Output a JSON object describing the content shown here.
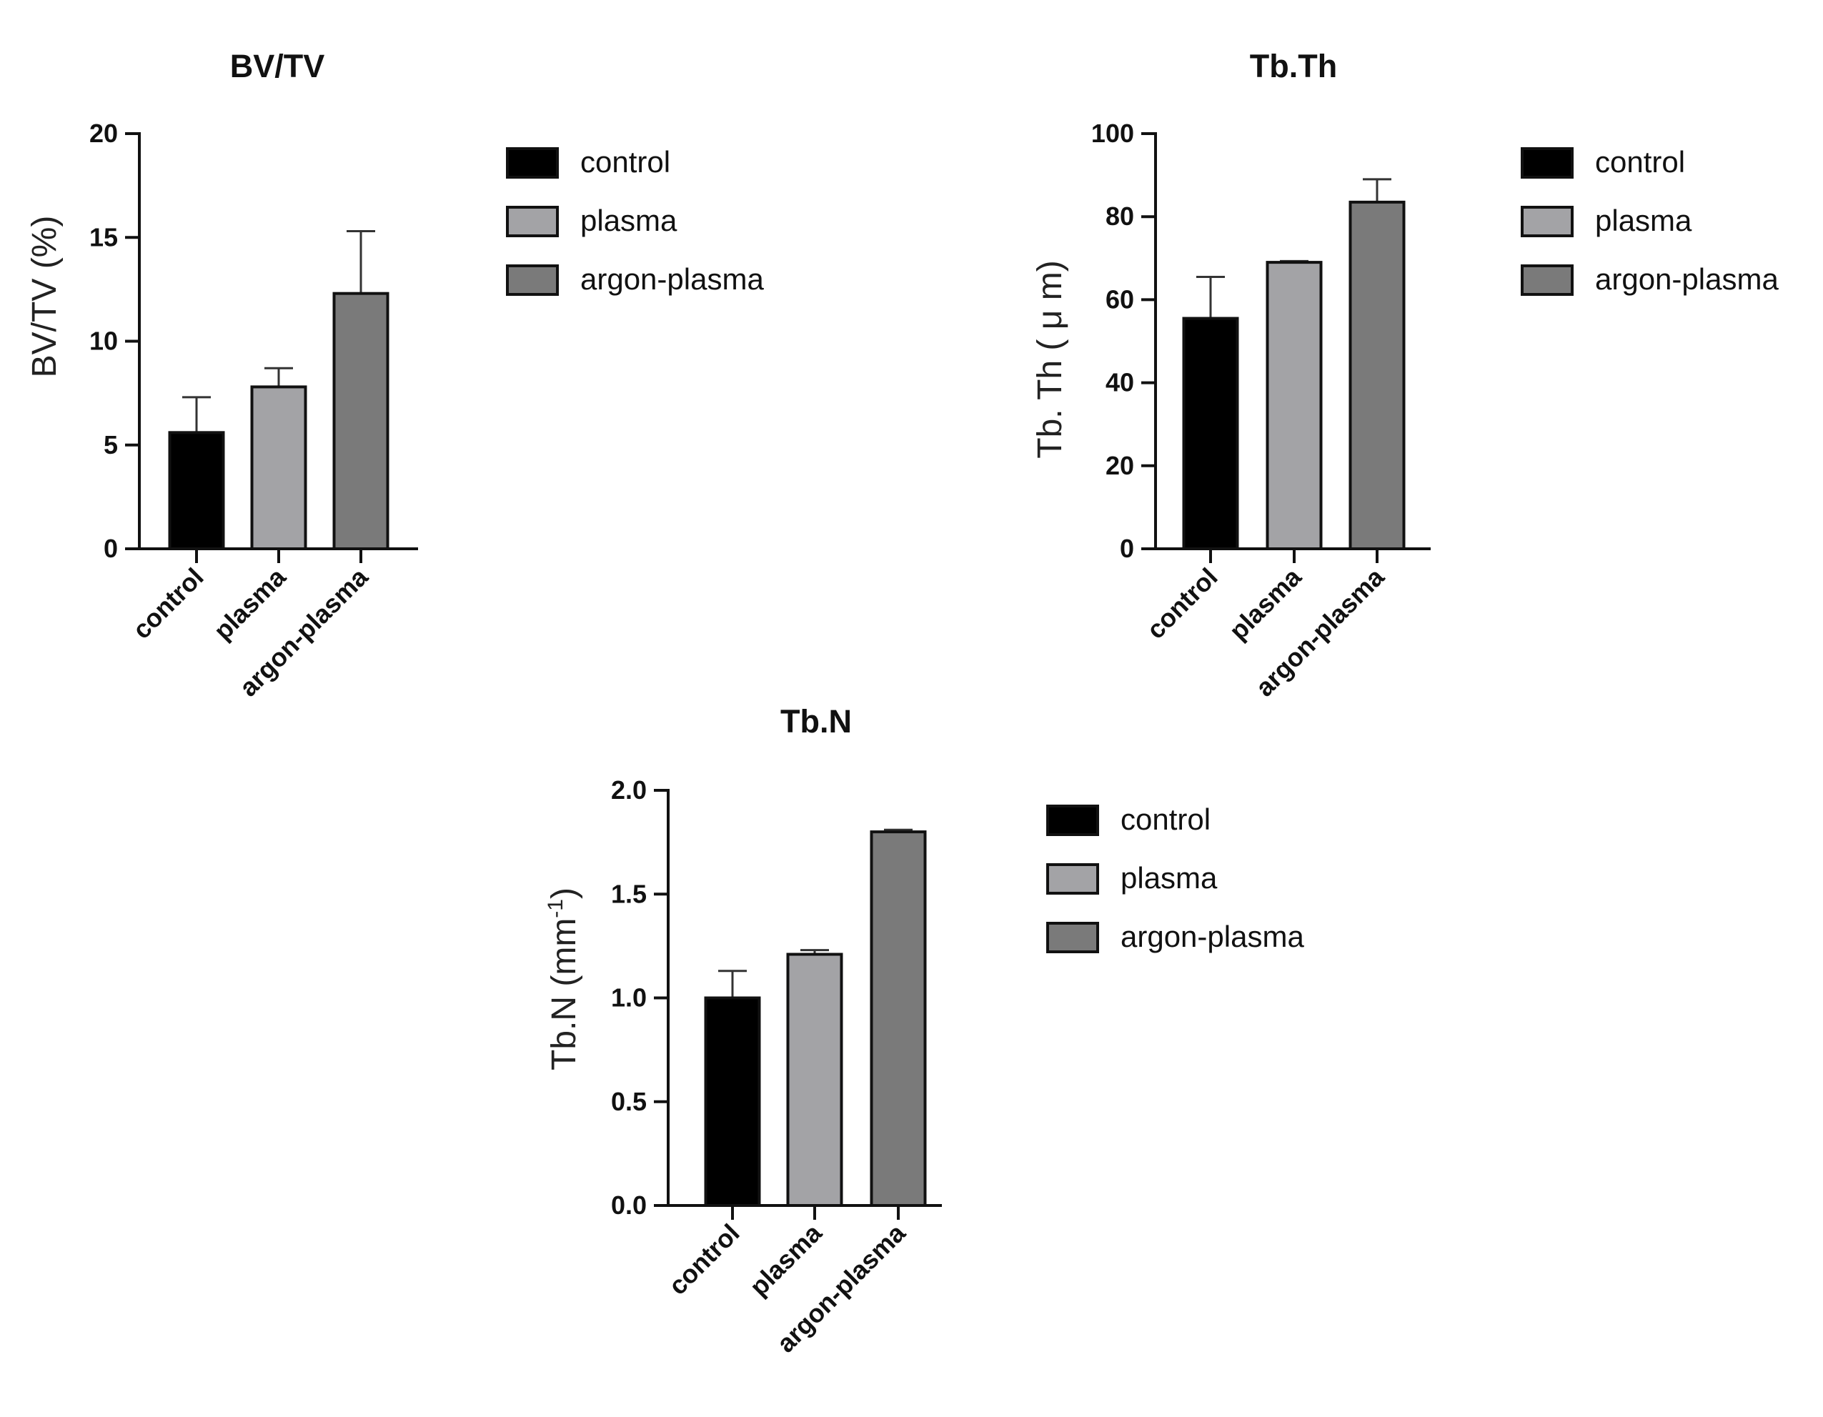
{
  "chart_data": [
    {
      "type": "bar",
      "title": "BV/TV",
      "ylabel": "BV/TV (%)",
      "ylabel_sup": "",
      "xlabel": "",
      "ylim": [
        0,
        20
      ],
      "yticks": [
        0,
        5,
        10,
        15,
        20
      ],
      "ytick_labels": [
        "0",
        "5",
        "10",
        "15",
        "20"
      ],
      "categories": [
        "control",
        "plasma",
        "argon-plasma"
      ],
      "values": [
        5.6,
        7.8,
        12.3
      ],
      "errors": [
        1.7,
        0.9,
        3.0
      ],
      "colors": [
        "#000000",
        "#a3a3a6",
        "#7a7a7a"
      ],
      "legend": [
        "control",
        "plasma",
        "argon-plasma"
      ],
      "legend_position": "right"
    },
    {
      "type": "bar",
      "title": "Tb.Th",
      "ylabel": "Tb. Th ( μ m)",
      "ylabel_sup": "",
      "xlabel": "",
      "ylim": [
        0,
        100
      ],
      "yticks": [
        0,
        20,
        40,
        60,
        80,
        100
      ],
      "ytick_labels": [
        "0",
        "20",
        "40",
        "60",
        "80",
        "100"
      ],
      "categories": [
        "control",
        "plasma",
        "argon-plasma"
      ],
      "values": [
        55.5,
        69.0,
        83.5
      ],
      "errors": [
        10.0,
        0.3,
        5.5
      ],
      "colors": [
        "#000000",
        "#a3a3a6",
        "#7a7a7a"
      ],
      "legend": [
        "control",
        "plasma",
        "argon-plasma"
      ],
      "legend_position": "right"
    },
    {
      "type": "bar",
      "title": "Tb.N",
      "ylabel": "Tb.N (mm",
      "ylabel_sup": "-1",
      "ylabel_close": ")",
      "xlabel": "",
      "ylim": [
        0,
        2.0
      ],
      "yticks": [
        0,
        0.5,
        1.0,
        1.5,
        2.0
      ],
      "ytick_labels": [
        "0.0",
        "0.5",
        "1.0",
        "1.5",
        "2.0"
      ],
      "categories": [
        "control",
        "plasma",
        "argon-plasma"
      ],
      "values": [
        1.0,
        1.21,
        1.8
      ],
      "errors": [
        0.13,
        0.02,
        0.01
      ],
      "colors": [
        "#000000",
        "#a3a3a6",
        "#7a7a7a"
      ],
      "legend": [
        "control",
        "plasma",
        "argon-plasma"
      ],
      "legend_position": "right"
    }
  ]
}
